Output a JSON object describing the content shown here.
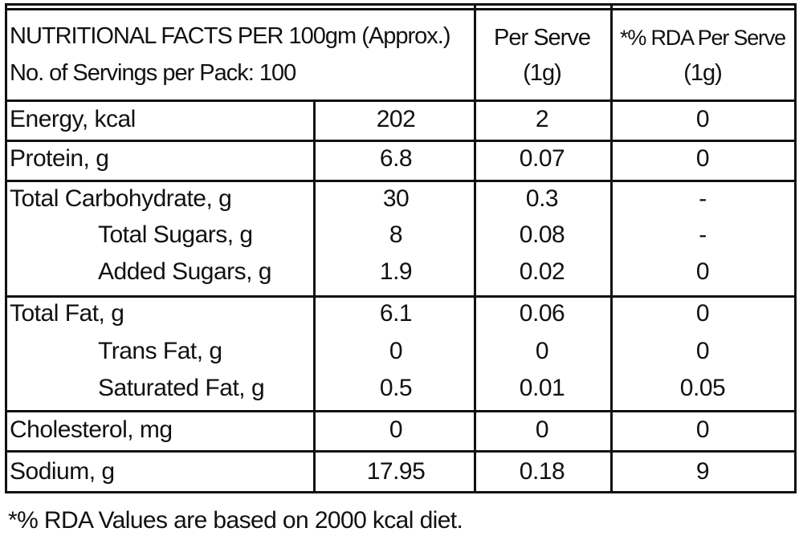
{
  "header": {
    "title_line1": "NUTRITIONAL FACTS PER 100gm (Approx.)",
    "title_line2": "No. of Servings per Pack: 100",
    "per_serve_line1": "Per Serve",
    "per_serve_line2": "(1g)",
    "rda_line1": "*% RDA Per Serve",
    "rda_line2": "(1g)"
  },
  "rows": [
    {
      "name": "Energy, kcal",
      "per100": "202",
      "per_serve": "2",
      "rda": "0"
    },
    {
      "name": "Protein, g",
      "per100": "6.8",
      "per_serve": "0.07",
      "rda": "0"
    },
    {
      "name": "Total Carbohydrate, g",
      "per100": "30",
      "per_serve": "0.3",
      "rda": "-"
    },
    {
      "name": "Total Sugars, g",
      "per100": "8",
      "per_serve": "0.08",
      "rda": "-"
    },
    {
      "name": "Added Sugars, g",
      "per100": "1.9",
      "per_serve": "0.02",
      "rda": "0"
    },
    {
      "name": "Total Fat, g",
      "per100": "6.1",
      "per_serve": "0.06",
      "rda": "0"
    },
    {
      "name": "Trans Fat, g",
      "per100": "0",
      "per_serve": "0",
      "rda": "0"
    },
    {
      "name": "Saturated Fat, g",
      "per100": "0.5",
      "per_serve": "0.01",
      "rda": "0.05"
    },
    {
      "name": "Cholesterol, mg",
      "per100": "0",
      "per_serve": "0",
      "rda": "0"
    },
    {
      "name": "Sodium, g",
      "per100": "17.95",
      "per_serve": "0.18",
      "rda": "9"
    }
  ],
  "footnote": "*% RDA Values are based on 2000 kcal diet."
}
